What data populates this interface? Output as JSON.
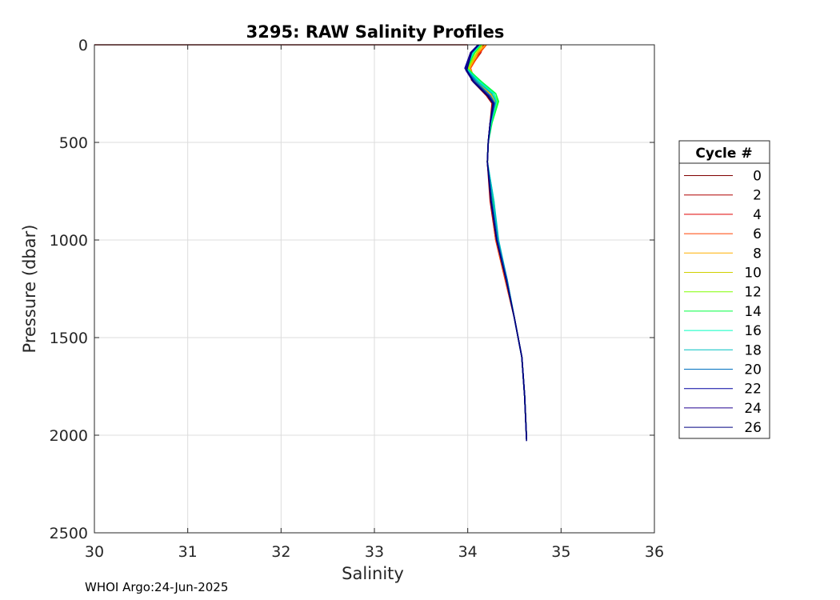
{
  "chart_data": {
    "type": "line",
    "title": "3295: RAW Salinity Profiles",
    "xlabel": "Salinity",
    "ylabel": "Pressure (dbar)",
    "xlim": [
      30,
      36
    ],
    "ylim": [
      0,
      2500
    ],
    "y_reversed": true,
    "xticks": [
      "30",
      "31",
      "32",
      "33",
      "34",
      "35",
      "36"
    ],
    "yticks": [
      "0",
      "500",
      "1000",
      "1500",
      "2000",
      "2500"
    ],
    "grid": true,
    "legend": {
      "title": "Cycle #",
      "placement": "right",
      "entries": [
        "0",
        "2",
        "4",
        "6",
        "8",
        "10",
        "12",
        "14",
        "16",
        "18",
        "20",
        "22",
        "24",
        "26"
      ]
    },
    "series": [
      {
        "name": "0",
        "color": "#800000",
        "x": [
          30.0,
          34.0
        ],
        "y": [
          0,
          0
        ]
      },
      {
        "name": "2",
        "color": "#b00000",
        "x": [
          34.17,
          34.14,
          34.02,
          34.04,
          34.2,
          34.26,
          34.24,
          34.22,
          34.21,
          34.24,
          34.3,
          34.4,
          34.5,
          34.58,
          34.61,
          34.63
        ],
        "y": [
          0,
          40,
          120,
          180,
          260,
          300,
          400,
          500,
          600,
          800,
          1000,
          1200,
          1400,
          1600,
          1800,
          2020
        ]
      },
      {
        "name": "4",
        "color": "#e00000",
        "x": [
          34.18,
          34.12,
          34.0,
          34.05,
          34.22,
          34.27,
          34.24,
          34.22,
          34.21,
          34.25,
          34.31,
          34.41,
          34.5,
          34.58,
          34.61,
          34.63
        ],
        "y": [
          0,
          40,
          110,
          180,
          250,
          290,
          400,
          500,
          600,
          800,
          1000,
          1200,
          1400,
          1600,
          1800,
          2020
        ]
      },
      {
        "name": "6",
        "color": "#ff4000",
        "x": [
          34.2,
          34.13,
          34.03,
          34.08,
          34.25,
          34.28,
          34.24,
          34.22,
          34.21,
          34.25,
          34.3,
          34.4,
          34.5,
          34.58,
          34.61,
          34.63
        ],
        "y": [
          0,
          40,
          120,
          190,
          250,
          300,
          400,
          500,
          600,
          800,
          1000,
          1200,
          1400,
          1600,
          1800,
          2020
        ]
      },
      {
        "name": "8",
        "color": "#ffb000",
        "x": [
          34.19,
          34.11,
          34.02,
          34.1,
          34.24,
          34.3,
          34.25,
          34.22,
          34.21,
          34.26,
          34.31,
          34.41,
          34.5,
          34.58,
          34.61,
          34.63
        ],
        "y": [
          0,
          40,
          120,
          190,
          250,
          300,
          400,
          500,
          600,
          800,
          1000,
          1200,
          1400,
          1600,
          1800,
          2020
        ]
      },
      {
        "name": "10",
        "color": "#d0d000",
        "x": [
          34.16,
          34.1,
          34.01,
          34.12,
          34.26,
          34.31,
          34.25,
          34.22,
          34.21,
          34.26,
          34.31,
          34.41,
          34.5,
          34.58,
          34.61,
          34.63
        ],
        "y": [
          0,
          40,
          120,
          190,
          250,
          300,
          400,
          500,
          600,
          800,
          1000,
          1200,
          1400,
          1600,
          1800,
          2020
        ]
      },
      {
        "name": "12",
        "color": "#80ff00",
        "x": [
          34.15,
          34.08,
          34.0,
          34.14,
          34.28,
          34.32,
          34.25,
          34.22,
          34.21,
          34.27,
          34.32,
          34.41,
          34.5,
          34.58,
          34.61,
          34.63
        ],
        "y": [
          0,
          40,
          120,
          190,
          250,
          290,
          400,
          500,
          600,
          800,
          1000,
          1200,
          1400,
          1600,
          1800,
          2020
        ]
      },
      {
        "name": "14",
        "color": "#00ff40",
        "x": [
          34.14,
          34.07,
          33.99,
          34.15,
          34.3,
          34.33,
          34.26,
          34.22,
          34.21,
          34.27,
          34.32,
          34.42,
          34.5,
          34.58,
          34.61,
          34.63
        ],
        "y": [
          0,
          40,
          120,
          190,
          250,
          290,
          400,
          500,
          600,
          800,
          1000,
          1200,
          1400,
          1600,
          1800,
          2020
        ]
      },
      {
        "name": "16",
        "color": "#00ffc0",
        "x": [
          34.13,
          34.06,
          33.98,
          34.13,
          34.28,
          34.31,
          34.25,
          34.22,
          34.21,
          34.28,
          34.32,
          34.42,
          34.5,
          34.58,
          34.61,
          34.63
        ],
        "y": [
          0,
          40,
          120,
          190,
          250,
          290,
          400,
          500,
          600,
          800,
          1000,
          1200,
          1400,
          1600,
          1800,
          2020
        ]
      },
      {
        "name": "18",
        "color": "#00c0c0",
        "x": [
          34.12,
          34.05,
          33.98,
          34.11,
          34.26,
          34.3,
          34.25,
          34.22,
          34.21,
          34.28,
          34.33,
          34.42,
          34.5,
          34.58,
          34.61,
          34.63
        ],
        "y": [
          0,
          40,
          120,
          190,
          250,
          290,
          400,
          500,
          600,
          800,
          1000,
          1200,
          1400,
          1600,
          1800,
          2020
        ]
      },
      {
        "name": "20",
        "color": "#0070c0",
        "x": [
          34.11,
          34.04,
          33.97,
          34.09,
          34.24,
          34.29,
          34.24,
          34.22,
          34.21,
          34.26,
          34.32,
          34.42,
          34.5,
          34.58,
          34.61,
          34.63
        ],
        "y": [
          0,
          40,
          120,
          190,
          260,
          300,
          400,
          500,
          600,
          800,
          1000,
          1200,
          1400,
          1600,
          1800,
          2020
        ]
      },
      {
        "name": "22",
        "color": "#0000a0",
        "x": [
          34.11,
          34.03,
          33.97,
          34.07,
          34.22,
          34.28,
          34.24,
          34.22,
          34.21,
          34.25,
          34.31,
          34.41,
          34.5,
          34.58,
          34.61,
          34.63
        ],
        "y": [
          0,
          40,
          120,
          190,
          260,
          300,
          400,
          500,
          600,
          800,
          1000,
          1200,
          1400,
          1600,
          1800,
          2020
        ]
      },
      {
        "name": "24",
        "color": "#200090",
        "x": [
          34.12,
          34.03,
          33.98,
          34.06,
          34.22,
          34.28,
          34.24,
          34.22,
          34.21,
          34.25,
          34.31,
          34.41,
          34.5,
          34.58,
          34.61,
          34.63
        ],
        "y": [
          0,
          40,
          130,
          190,
          260,
          300,
          400,
          500,
          600,
          800,
          1000,
          1200,
          1400,
          1600,
          1800,
          2020
        ]
      },
      {
        "name": "26",
        "color": "#000080",
        "x": [
          34.12,
          34.04,
          33.99,
          34.06,
          34.21,
          34.27,
          34.24,
          34.22,
          34.21,
          34.25,
          34.31,
          34.41,
          34.5,
          34.58,
          34.61,
          34.63
        ],
        "y": [
          0,
          40,
          130,
          190,
          260,
          300,
          400,
          500,
          600,
          800,
          1000,
          1200,
          1400,
          1600,
          1800,
          2030
        ]
      }
    ]
  },
  "footer": "WHOI Argo:24-Jun-2025"
}
